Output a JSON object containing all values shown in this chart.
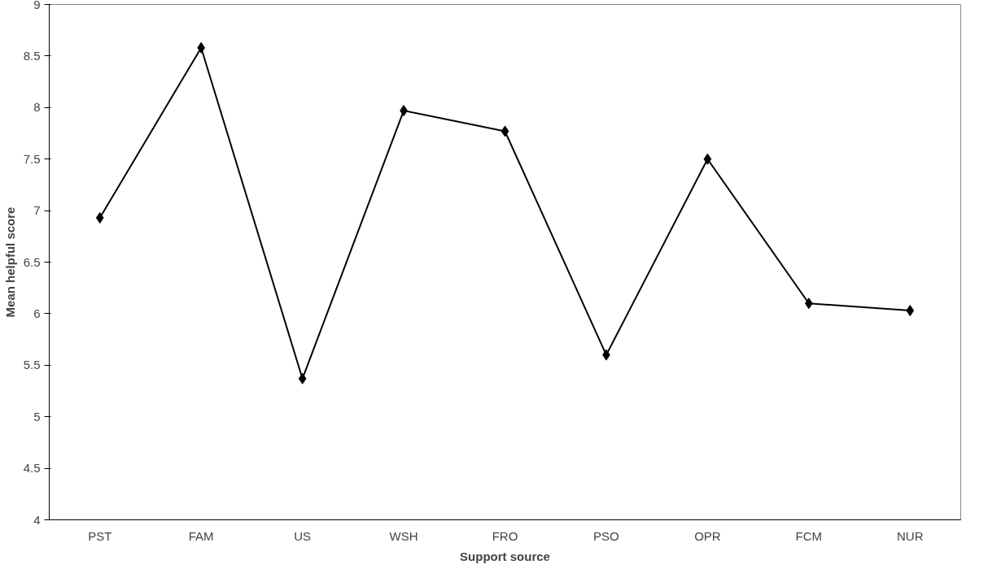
{
  "chart_data": {
    "type": "line",
    "xlabel": "Support source",
    "ylabel": "Mean helpful score",
    "categories": [
      "PST",
      "FAM",
      "US",
      "WSH",
      "FRO",
      "PSO",
      "OPR",
      "FCM",
      "NUR"
    ],
    "series": [
      {
        "color": "#000000",
        "values": [
          6.93,
          8.58,
          5.37,
          7.97,
          7.77,
          5.6,
          7.5,
          6.1,
          6.03
        ]
      }
    ],
    "ylim": [
      4,
      9
    ],
    "yticks": [
      4,
      4.5,
      5,
      5.5,
      6,
      6.5,
      7,
      7.5,
      8,
      8.5,
      9
    ],
    "grid": false,
    "marker": "diamond",
    "line_style": "solid"
  }
}
